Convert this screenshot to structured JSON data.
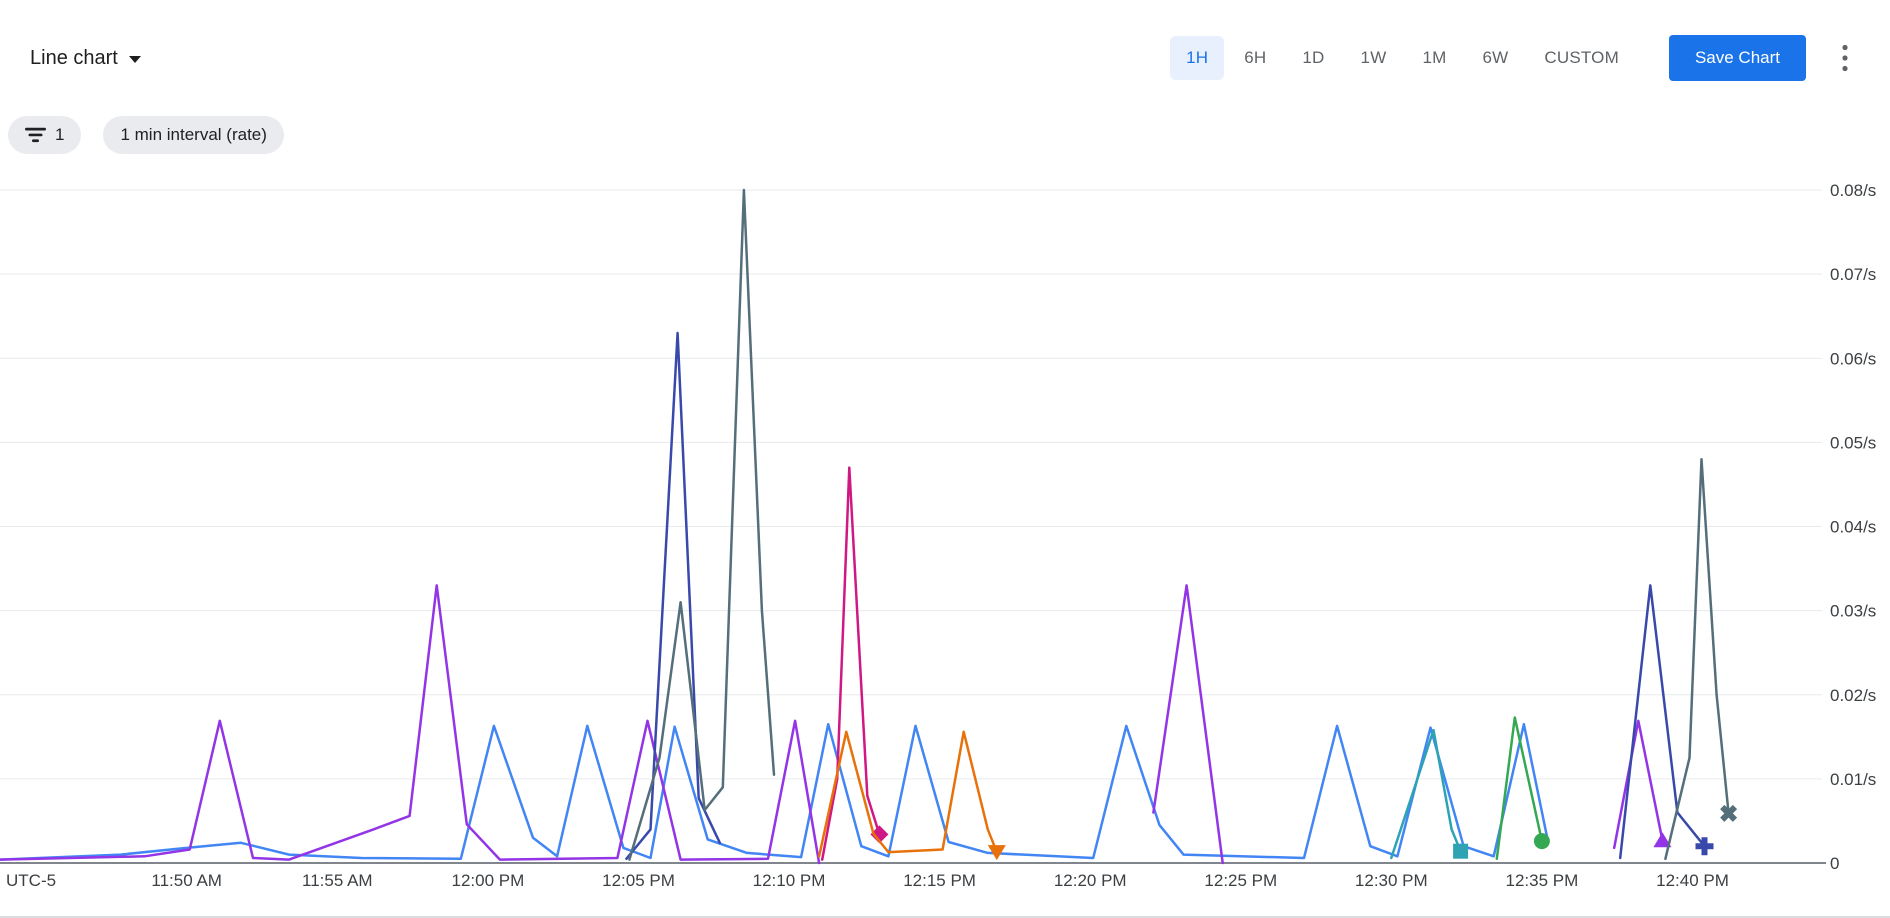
{
  "header": {
    "chart_type_label": "Line chart",
    "time_ranges": [
      "1H",
      "6H",
      "1D",
      "1W",
      "1M",
      "6W",
      "CUSTOM"
    ],
    "active_time_range": "1H",
    "save_button_label": "Save Chart",
    "more_options_icon": "kebab-menu"
  },
  "filters": {
    "filter_chip_count": "1",
    "interval_chip_label": "1 min interval (rate)",
    "filter_icon": "filter-lines"
  },
  "colors": {
    "accent_blue": "#1a73e8",
    "active_range_bg": "#e8f0fe",
    "chip_bg": "#e9ebee",
    "grid_line": "#e8eaed",
    "axis_line": "#80868b",
    "label_text": "#3c4043",
    "muted_text": "#5f6368"
  },
  "chart_data": {
    "type": "line",
    "title": "",
    "timezone_label": "UTC-5",
    "y_unit": "/s",
    "ylim": [
      0,
      0.08
    ],
    "grid": true,
    "legend_position": "none",
    "y_ticks": [
      {
        "v": 0,
        "label": "0"
      },
      {
        "v": 0.01,
        "label": "0.01/s"
      },
      {
        "v": 0.02,
        "label": "0.02/s"
      },
      {
        "v": 0.03,
        "label": "0.03/s"
      },
      {
        "v": 0.04,
        "label": "0.04/s"
      },
      {
        "v": 0.05,
        "label": "0.05/s"
      },
      {
        "v": 0.06,
        "label": "0.06/s"
      },
      {
        "v": 0.07,
        "label": "0.07/s"
      },
      {
        "v": 0.08,
        "label": "0.08/s"
      }
    ],
    "x_domain_minutes": [
      0,
      60.5
    ],
    "x_ticks": [
      {
        "t": 6.2,
        "label": "11:50 AM"
      },
      {
        "t": 11.2,
        "label": "11:55 AM"
      },
      {
        "t": 16.2,
        "label": "12:00 PM"
      },
      {
        "t": 21.2,
        "label": "12:05 PM"
      },
      {
        "t": 26.2,
        "label": "12:10 PM"
      },
      {
        "t": 31.2,
        "label": "12:15 PM"
      },
      {
        "t": 36.2,
        "label": "12:20 PM"
      },
      {
        "t": 41.2,
        "label": "12:25 PM"
      },
      {
        "t": 46.2,
        "label": "12:30 PM"
      },
      {
        "t": 51.2,
        "label": "12:35 PM"
      },
      {
        "t": 56.2,
        "label": "12:40 PM"
      }
    ],
    "series": [
      {
        "name": "blue",
        "color": "#4285f4",
        "end_marker": null,
        "segments": [
          [
            [
              0,
              0.0004
            ],
            [
              4,
              0.001
            ],
            [
              6.2,
              0.0018
            ],
            [
              8,
              0.0024
            ],
            [
              9.6,
              0.001
            ],
            [
              12,
              0.0006
            ],
            [
              15.3,
              0.0005
            ],
            [
              16.4,
              0.0163
            ],
            [
              17.7,
              0.003
            ],
            [
              18.5,
              0.0008
            ],
            [
              19.5,
              0.0163
            ],
            [
              20.7,
              0.0018
            ],
            [
              21.6,
              0.0006
            ],
            [
              22.4,
              0.0162
            ],
            [
              23.5,
              0.0028
            ],
            [
              24.8,
              0.0012
            ],
            [
              26.6,
              0.0007
            ],
            [
              27.5,
              0.0165
            ],
            [
              28.6,
              0.002
            ],
            [
              29.5,
              0.0008
            ],
            [
              30.4,
              0.0163
            ],
            [
              31.5,
              0.0025
            ],
            [
              32.8,
              0.0012
            ],
            [
              36.3,
              0.0006
            ],
            [
              37.4,
              0.0163
            ],
            [
              38.5,
              0.0045
            ],
            [
              39.3,
              0.001
            ],
            [
              43.3,
              0.0006
            ],
            [
              44.4,
              0.0163
            ],
            [
              45.5,
              0.002
            ],
            [
              46.4,
              0.0008
            ],
            [
              47.5,
              0.0161
            ],
            [
              48.6,
              0.002
            ],
            [
              49.6,
              0.0008
            ],
            [
              50.6,
              0.0165
            ],
            [
              51.4,
              0.0026
            ]
          ]
        ]
      },
      {
        "name": "purple",
        "color": "#9334e6",
        "end_marker": "triangle-up",
        "segments": [
          [
            [
              0,
              0.0004
            ],
            [
              4.8,
              0.0008
            ],
            [
              6.3,
              0.0016
            ],
            [
              7.3,
              0.0169
            ],
            [
              8.4,
              0.0006
            ],
            [
              9.6,
              0.0004
            ],
            [
              12.4,
              0.004
            ],
            [
              13.6,
              0.0056
            ],
            [
              14.5,
              0.033
            ],
            [
              15.5,
              0.0046
            ],
            [
              16.6,
              0.0004
            ],
            [
              20.5,
              0.0006
            ],
            [
              21.5,
              0.0169
            ],
            [
              22.6,
              0.0004
            ],
            [
              25.5,
              0.0005
            ],
            [
              26.4,
              0.0169
            ],
            [
              27.2,
              0
            ]
          ],
          [
            [
              38.3,
              0.006
            ],
            [
              39.4,
              0.033
            ],
            [
              40.6,
              0
            ]
          ],
          [
            [
              53.6,
              0.0018
            ],
            [
              54.4,
              0.0169
            ],
            [
              55.2,
              0.0027
            ]
          ]
        ]
      },
      {
        "name": "indigo",
        "color": "#3949ab",
        "end_marker": "plus",
        "segments": [
          [
            [
              20.8,
              0.0005
            ],
            [
              21.6,
              0.004
            ],
            [
              22.5,
              0.063
            ],
            [
              23.2,
              0.0077
            ],
            [
              23.9,
              0.0024
            ]
          ],
          [
            [
              53.8,
              0.0006
            ],
            [
              54.8,
              0.033
            ],
            [
              55.7,
              0.006
            ],
            [
              56.6,
              0.002
            ]
          ]
        ]
      },
      {
        "name": "slate",
        "color": "#546e7a",
        "end_marker": "x-mark",
        "segments": [
          [
            [
              20.9,
              0.0004
            ],
            [
              21.9,
              0.0125
            ],
            [
              22.6,
              0.031
            ],
            [
              23.4,
              0.0063
            ],
            [
              24.0,
              0.009
            ],
            [
              24.7,
              0.08
            ],
            [
              25.3,
              0.03
            ],
            [
              25.7,
              0.0105
            ]
          ],
          [
            [
              55.3,
              0.0005
            ],
            [
              56.1,
              0.0125
            ],
            [
              56.5,
              0.048
            ],
            [
              57.0,
              0.02
            ],
            [
              57.4,
              0.0059
            ]
          ]
        ]
      },
      {
        "name": "pink",
        "color": "#d01884",
        "end_marker": "diamond",
        "segments": [
          [
            [
              27.3,
              0.0004
            ],
            [
              27.8,
              0.01
            ],
            [
              28.2,
              0.047
            ],
            [
              28.8,
              0.008
            ],
            [
              29.2,
              0.0034
            ]
          ]
        ]
      },
      {
        "name": "orange",
        "color": "#e8710a",
        "end_marker": "triangle-down",
        "segments": [
          [
            [
              27.2,
              0.0008
            ],
            [
              28.1,
              0.0156
            ],
            [
              29.0,
              0.0035
            ],
            [
              29.5,
              0.0013
            ],
            [
              31.3,
              0.0016
            ],
            [
              32.0,
              0.0156
            ],
            [
              32.8,
              0.004
            ],
            [
              33.1,
              0.0013
            ]
          ]
        ]
      },
      {
        "name": "teal",
        "color": "#2da3b4",
        "end_marker": "square",
        "segments": [
          [
            [
              46.2,
              0.0006
            ],
            [
              47.6,
              0.0158
            ],
            [
              48.2,
              0.004
            ],
            [
              48.5,
              0.0014
            ]
          ]
        ]
      },
      {
        "name": "green",
        "color": "#34a853",
        "end_marker": "circle",
        "segments": [
          [
            [
              49.7,
              0.0005
            ],
            [
              50.3,
              0.0173
            ],
            [
              51.2,
              0.0026
            ]
          ]
        ]
      }
    ]
  }
}
